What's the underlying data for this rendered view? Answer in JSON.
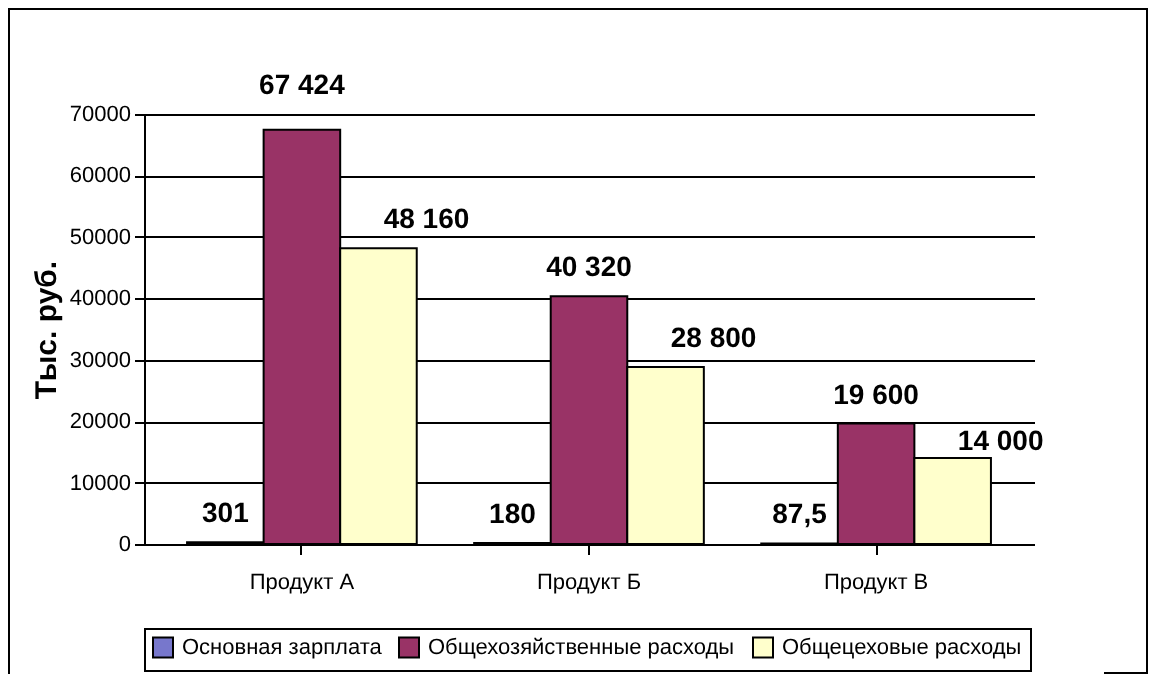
{
  "chart_data": {
    "type": "bar",
    "ylabel": "Тыс. руб.",
    "categories": [
      "Продукт А",
      "Продукт Б",
      "Продукт В"
    ],
    "series": [
      {
        "name": "Основная зарплата",
        "color": "#7777cc",
        "values": [
          301,
          180,
          87.5
        ],
        "value_labels": [
          "301",
          "180",
          "87,5"
        ]
      },
      {
        "name": "Общехозяйственные расходы",
        "color": "#993366",
        "values": [
          67424,
          40320,
          19600
        ],
        "value_labels": [
          "67 424",
          "40 320",
          "19 600"
        ]
      },
      {
        "name": "Общецеховые расходы",
        "color": "#ffffcc",
        "values": [
          48160,
          28800,
          14000
        ],
        "value_labels": [
          "48 160",
          "28 800",
          "14 000"
        ]
      }
    ],
    "ylim": [
      0,
      70000
    ],
    "yticks": [
      0,
      10000,
      20000,
      30000,
      40000,
      50000,
      60000,
      70000
    ],
    "grid": "y",
    "legend": "bottom"
  }
}
